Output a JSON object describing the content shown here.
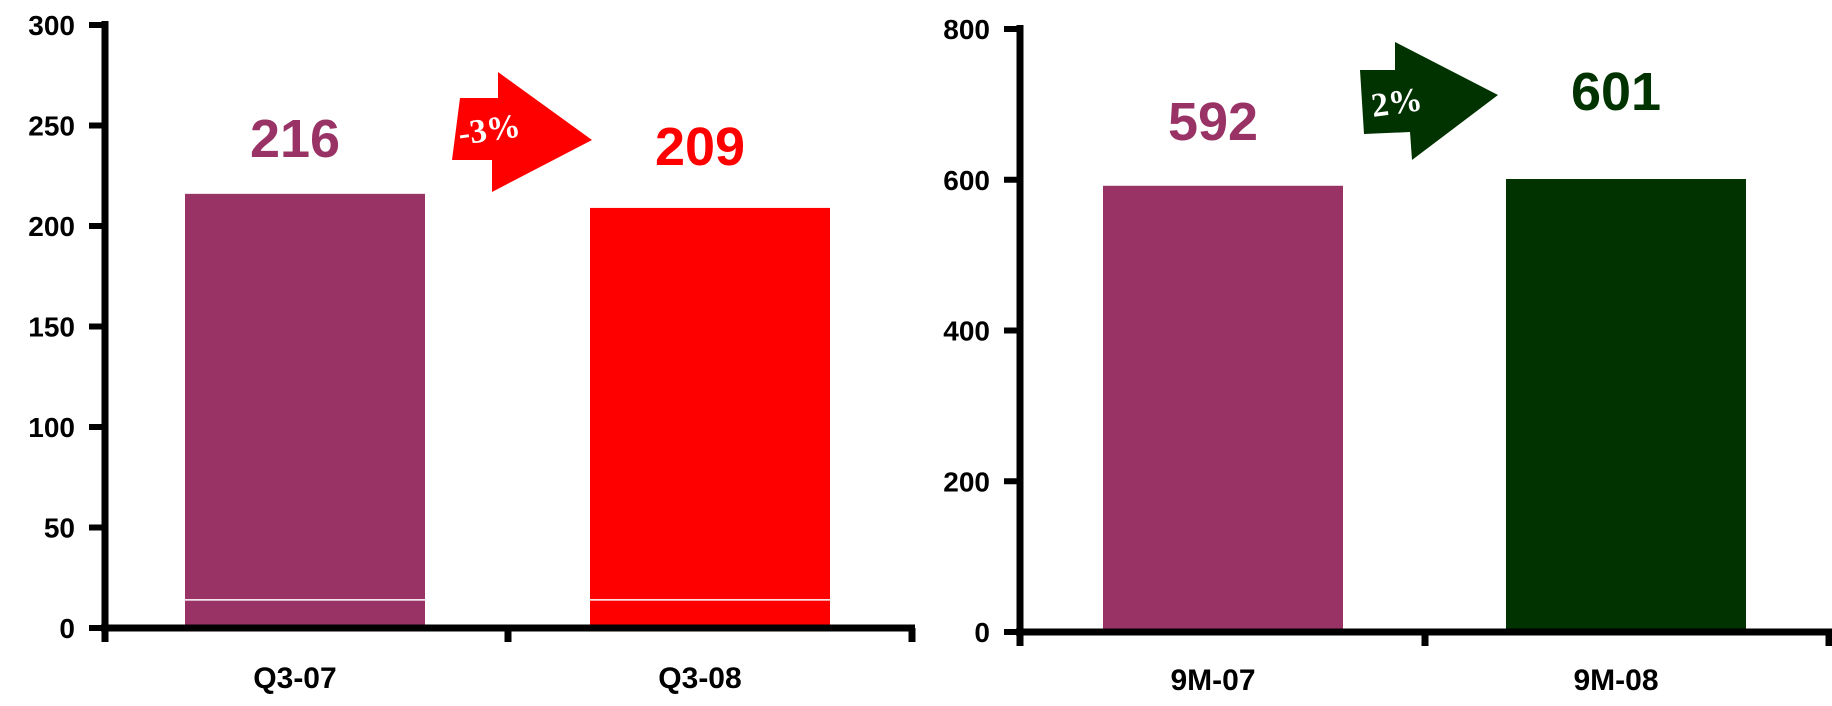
{
  "chart_data": [
    {
      "type": "bar",
      "categories": [
        "Q3-07",
        "Q3-08"
      ],
      "values": [
        216,
        209
      ],
      "data_labels": [
        "216",
        "209"
      ],
      "ylim": [
        0,
        300
      ],
      "yticks": [
        0,
        50,
        100,
        150,
        200,
        250,
        300
      ],
      "colors": [
        "#993366",
        "#ff0000"
      ],
      "change_label": "-3%",
      "change_color": "#ff0000",
      "grid": false
    },
    {
      "type": "bar",
      "categories": [
        "9M-07",
        "9M-08"
      ],
      "values": [
        592,
        601
      ],
      "data_labels": [
        "592",
        "601"
      ],
      "ylim": [
        0,
        800
      ],
      "yticks": [
        0,
        200,
        400,
        600,
        800
      ],
      "colors": [
        "#993366",
        "#003300"
      ],
      "change_label": "2%",
      "change_color": "#003300",
      "grid": false
    }
  ]
}
